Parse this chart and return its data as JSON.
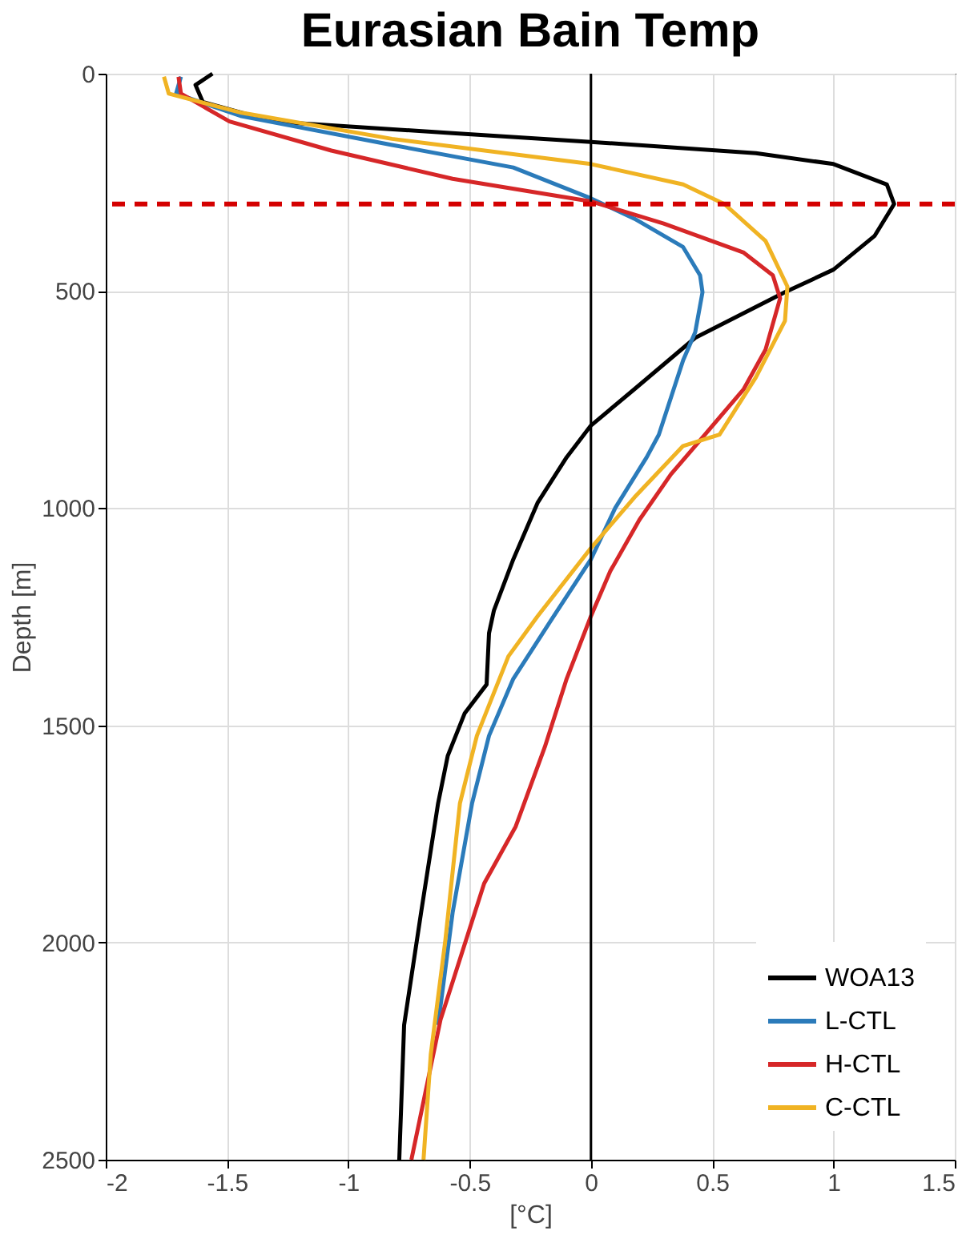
{
  "chart_data": {
    "type": "line",
    "title": "Eurasian Bain Temp",
    "xlabel": "[°C]",
    "ylabel": "Depth [m]",
    "xlim": [
      -2,
      1.5
    ],
    "xticks": [
      -2,
      -1.5,
      -1,
      -0.5,
      0,
      0.5,
      1,
      1.5
    ],
    "ylim": [
      2500,
      0
    ],
    "yticks": [
      0,
      500,
      1000,
      1500,
      2000,
      2500
    ],
    "grid": true,
    "legend": "bottom right",
    "line_style": "solid",
    "marker": "none",
    "ref_lines": [
      {
        "axis": "x",
        "value": 0,
        "color": "#000000",
        "line_style": "solid"
      },
      {
        "axis": "y",
        "value": 300,
        "color": "#d40000",
        "line_style": "dashed"
      }
    ],
    "series": [
      {
        "name": "WOA13",
        "color": "#000000",
        "x": [
          -1.56,
          -1.63,
          -1.6,
          -1.31,
          -0.57,
          0.0,
          0.68,
          1.0,
          1.22,
          1.25,
          1.17,
          1.0,
          0.8,
          0.43,
          0.18,
          0.0,
          -0.1,
          -0.22,
          -0.32,
          -0.4,
          -0.42,
          -0.43,
          -0.52,
          -0.59,
          -0.63,
          -0.7,
          -0.77,
          -0.79
        ],
        "values": [
          0,
          26,
          65,
          110,
          137,
          157,
          183,
          208,
          255,
          300,
          373,
          451,
          503,
          608,
          726,
          810,
          883,
          988,
          1118,
          1236,
          1288,
          1406,
          1472,
          1570,
          1680,
          1931,
          2190,
          2500
        ]
      },
      {
        "name": "L-CTL",
        "color": "#2b7bba",
        "x": [
          -1.69,
          -1.71,
          -1.44,
          -0.82,
          -0.32,
          0.0,
          0.18,
          0.38,
          0.45,
          0.46,
          0.43,
          0.38,
          0.28,
          0.23,
          0.1,
          0.0,
          -0.17,
          -0.32,
          -0.42,
          -0.49,
          -0.57,
          -0.63,
          null
        ],
        "values": [
          7,
          46,
          98,
          164,
          216,
          287,
          334,
          399,
          464,
          503,
          595,
          660,
          831,
          883,
          1000,
          1118,
          1263,
          1393,
          1524,
          1680,
          1931,
          2190,
          null
        ]
      },
      {
        "name": "H-CTL",
        "color": "#d62728",
        "x": [
          -1.7,
          -1.69,
          -1.49,
          -1.07,
          -0.57,
          0.0,
          0.3,
          0.63,
          0.75,
          0.78,
          0.72,
          0.63,
          0.43,
          0.33,
          0.2,
          0.08,
          0.0,
          -0.1,
          -0.19,
          -0.31,
          -0.44,
          -0.62,
          -0.74
        ],
        "values": [
          7,
          46,
          110,
          177,
          242,
          294,
          345,
          412,
          464,
          517,
          635,
          726,
          857,
          922,
          1027,
          1145,
          1249,
          1393,
          1550,
          1733,
          1864,
          2178,
          2500
        ]
      },
      {
        "name": "C-CTL",
        "color": "#f0b323",
        "x": [
          -1.76,
          -1.74,
          -1.44,
          -0.82,
          0.0,
          0.38,
          0.55,
          0.72,
          0.81,
          0.8,
          0.68,
          0.53,
          0.38,
          0.18,
          0.0,
          -0.22,
          -0.34,
          -0.47,
          -0.54,
          -0.6,
          -0.66,
          -0.69
        ],
        "values": [
          7,
          46,
          90,
          150,
          208,
          255,
          300,
          385,
          490,
          569,
          699,
          831,
          857,
          975,
          1092,
          1249,
          1341,
          1524,
          1680,
          1995,
          2257,
          2500
        ]
      }
    ]
  }
}
